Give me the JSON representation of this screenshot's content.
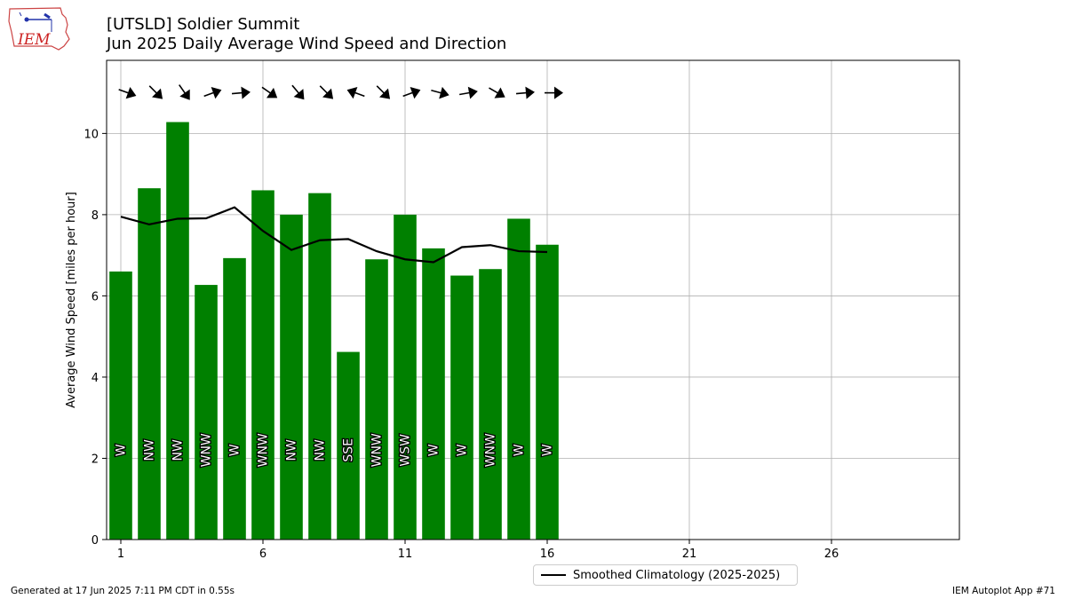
{
  "header": {
    "logo_text": "IEM",
    "title_line1": "[UTSLD] Soldier Summit",
    "title_line2": "Jun 2025 Daily Average Wind Speed and Direction"
  },
  "footer": {
    "left": "Generated at 17 Jun 2025 7:11 PM CDT in 0.55s",
    "right": "IEM Autoplot App #71"
  },
  "colors": {
    "bar": "#008000",
    "climo_line": "#000000",
    "grid": "#b0b0b0"
  },
  "chart_data": {
    "type": "bar",
    "ylabel": "Average Wind Speed [miles per hour]",
    "xlim": [
      0.5,
      30.5
    ],
    "ylim": [
      0,
      11.8
    ],
    "xticks": [
      1,
      6,
      11,
      16,
      21,
      26
    ],
    "yticks": [
      0,
      2,
      4,
      6,
      8,
      10
    ],
    "grid": true,
    "legend_position": "bottom-center",
    "days": [
      1,
      2,
      3,
      4,
      5,
      6,
      7,
      8,
      9,
      10,
      11,
      12,
      13,
      14,
      15,
      16
    ],
    "series": [
      {
        "name": "Average Wind Speed",
        "type": "bar",
        "values": [
          6.6,
          8.65,
          10.28,
          6.27,
          6.93,
          8.6,
          8.0,
          8.53,
          4.62,
          6.9,
          8.0,
          7.17,
          6.5,
          6.66,
          7.9,
          7.26
        ]
      },
      {
        "name": "Smoothed Climatology (2025-2025)",
        "type": "line",
        "values": [
          7.95,
          7.76,
          7.9,
          7.91,
          8.18,
          7.6,
          7.13,
          7.37,
          7.4,
          7.1,
          6.9,
          6.83,
          7.2,
          7.25,
          7.1,
          7.08
        ]
      }
    ],
    "directions": [
      "W",
      "NW",
      "NW",
      "WNW",
      "W",
      "WNW",
      "NW",
      "NW",
      "SSE",
      "WNW",
      "WSW",
      "W",
      "W",
      "WNW",
      "W",
      "W"
    ],
    "arrow_angles_deg": [
      20,
      45,
      55,
      340,
      355,
      35,
      50,
      45,
      200,
      45,
      340,
      15,
      350,
      30,
      355,
      0
    ]
  }
}
